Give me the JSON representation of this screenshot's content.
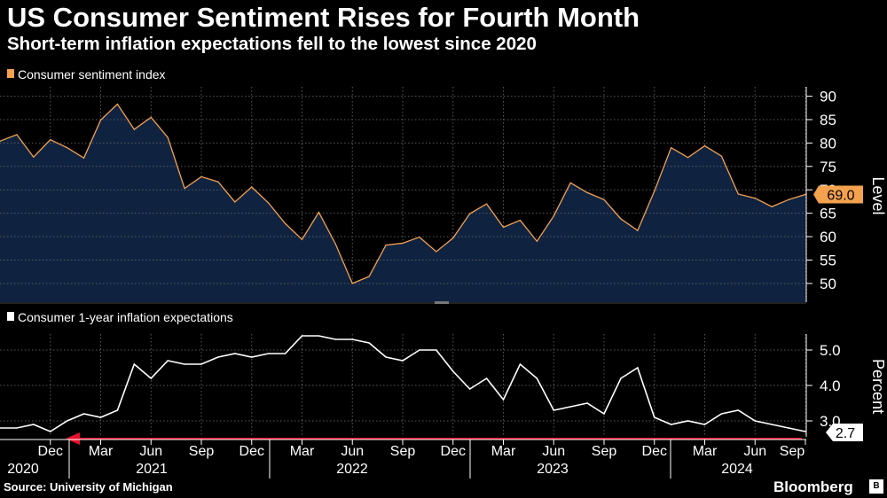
{
  "header": {
    "title": "US Consumer Sentiment Rises for Fourth Month",
    "subtitle": "Short-term inflation expectations fell to the lowest since 2020"
  },
  "footer": {
    "source": "Source: University of Michigan",
    "brand": "Bloomberg",
    "brand_mark": "B"
  },
  "colors": {
    "sentiment_line": "#f4a24e",
    "sentiment_fill": "#0f2341",
    "inflation_line": "#ffffff",
    "arrow": "#e8112d",
    "grid": "#5a5a5a",
    "background": "#000000"
  },
  "chart_data": [
    {
      "type": "area",
      "title": "Consumer sentiment index",
      "legend_label": "Consumer sentiment index",
      "ylabel": "Level",
      "ylim": [
        46,
        92
      ],
      "yticks": [
        50,
        55,
        60,
        65,
        70,
        75,
        80,
        85,
        90
      ],
      "last_value_label": "69.0",
      "series": [
        {
          "name": "Consumer sentiment index",
          "values": [
            80.4,
            81.8,
            77.0,
            80.7,
            79.0,
            76.8,
            84.9,
            88.3,
            82.9,
            85.5,
            81.2,
            70.3,
            72.8,
            71.7,
            67.4,
            70.6,
            67.2,
            62.8,
            59.4,
            65.2,
            58.4,
            50.0,
            51.5,
            58.2,
            58.6,
            59.9,
            56.8,
            59.7,
            64.9,
            67.0,
            62.0,
            63.5,
            59.0,
            64.4,
            71.5,
            69.4,
            67.9,
            63.8,
            61.3,
            69.7,
            79.0,
            76.9,
            79.4,
            77.2,
            69.1,
            68.2,
            66.4,
            67.9,
            69.0
          ]
        }
      ]
    },
    {
      "type": "line",
      "title": "Consumer 1-year inflation expectations",
      "legend_label": "Consumer 1-year inflation expectations",
      "ylabel": "Percent",
      "ylim": [
        2.55,
        5.45
      ],
      "yticks": [
        3.0,
        4.0,
        5.0
      ],
      "ytick_labels": [
        "3.0",
        "4.0",
        "5.0"
      ],
      "last_value_label": "2.7",
      "series": [
        {
          "name": "Consumer 1-year inflation expectations",
          "values": [
            2.8,
            2.8,
            2.9,
            2.7,
            3.0,
            3.2,
            3.1,
            3.3,
            4.6,
            4.2,
            4.7,
            4.6,
            4.6,
            4.8,
            4.9,
            4.8,
            4.9,
            4.9,
            5.4,
            5.4,
            5.3,
            5.3,
            5.2,
            4.8,
            4.7,
            5.0,
            5.0,
            4.4,
            3.9,
            4.2,
            3.6,
            4.6,
            4.2,
            3.3,
            3.4,
            3.5,
            3.2,
            4.2,
            4.5,
            3.1,
            2.9,
            3.0,
            2.9,
            3.2,
            3.3,
            3.0,
            2.9,
            2.8,
            2.7
          ]
        }
      ],
      "annotation": "Arrow pointing back to 2020 level"
    }
  ],
  "x_axis": {
    "month_labels": [
      "Dec",
      "Mar",
      "Jun",
      "Sep",
      "Dec",
      "Mar",
      "Jun",
      "Sep",
      "Dec",
      "Mar",
      "Jun",
      "Sep",
      "Dec",
      "Mar",
      "Jun",
      "Sep"
    ],
    "year_labels": [
      "2020",
      "2021",
      "2022",
      "2023",
      "2024"
    ]
  }
}
